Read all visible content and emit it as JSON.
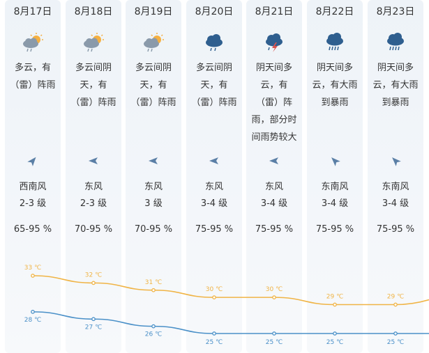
{
  "days": [
    {
      "date": "8月17日",
      "icon": "partly-cloudy-rain-icon",
      "desc_lines": [
        "多云，有",
        "（雷）阵雨"
      ],
      "wind_dir": "西南风",
      "wind_level": "2-3 级",
      "humidity": "65-95 %",
      "wind_arrow_deg": 40
    },
    {
      "date": "8月18日",
      "icon": "partly-cloudy-rain-icon",
      "desc_lines": [
        "多云间阴",
        "天，有",
        "（雷）阵雨"
      ],
      "wind_dir": "东风",
      "wind_level": "2-3 级",
      "humidity": "70-95 %",
      "wind_arrow_deg": -90
    },
    {
      "date": "8月19日",
      "icon": "partly-cloudy-rain-icon",
      "desc_lines": [
        "多云间阴",
        "天，有",
        "（雷）阵雨"
      ],
      "wind_dir": "东风",
      "wind_level": "3 级",
      "humidity": "70-95 %",
      "wind_arrow_deg": -90
    },
    {
      "date": "8月20日",
      "icon": "cloud-rain-icon",
      "desc_lines": [
        "多云间阴",
        "天，有",
        "（雷）阵雨"
      ],
      "wind_dir": "东风",
      "wind_level": "3-4 级",
      "humidity": "75-95 %",
      "wind_arrow_deg": -90
    },
    {
      "date": "8月21日",
      "icon": "thunderstorm-icon",
      "desc_lines": [
        "阴天间多",
        "云，有",
        "（雷）阵",
        "雨，部分时",
        "间雨势较大"
      ],
      "wind_dir": "东风",
      "wind_level": "3-4 级",
      "humidity": "75-95 %",
      "wind_arrow_deg": -90
    },
    {
      "date": "8月22日",
      "icon": "heavy-rain-icon",
      "desc_lines": [
        "阴天间多",
        "云，有大雨",
        "到暴雨"
      ],
      "wind_dir": "东南风",
      "wind_level": "3-4 级",
      "humidity": "75-95 %",
      "wind_arrow_deg": -45
    },
    {
      "date": "8月23日",
      "icon": "heavy-rain-icon",
      "desc_lines": [
        "阴天间多",
        "云，有大雨",
        "到暴雨"
      ],
      "wind_dir": "东南风",
      "wind_level": "3-4 级",
      "humidity": "75-95 %",
      "wind_arrow_deg": -45
    }
  ],
  "chart_data": {
    "type": "line",
    "categories": [
      "8月17日",
      "8月18日",
      "8月19日",
      "8月20日",
      "8月21日",
      "8月22日",
      "8月23日"
    ],
    "ylim": [
      22,
      36
    ],
    "series": [
      {
        "values": [
          33,
          32,
          31,
          30,
          30,
          29,
          29
        ],
        "labels": [
          "33 ℃",
          "32 ℃",
          "31 ℃",
          "30 ℃",
          "30 ℃",
          "29 ℃",
          "29 ℃"
        ],
        "color": "#f0b445"
      },
      {
        "values": [
          28,
          27,
          26,
          25,
          25,
          25,
          25
        ],
        "labels": [
          "28 ℃",
          "27 ℃",
          "26 ℃",
          "25 ℃",
          "25 ℃",
          "25 ℃",
          "25 ℃"
        ],
        "color": "#4a90c8"
      }
    ]
  },
  "colors": {
    "high": "#f0b445",
    "low": "#4a90c8",
    "arrow": "#5b7fa6",
    "cloud": "#8a9aaa",
    "sun": "#f5b041",
    "rain_cloud": "#2f5f8f",
    "bolt": "#d9534f"
  }
}
